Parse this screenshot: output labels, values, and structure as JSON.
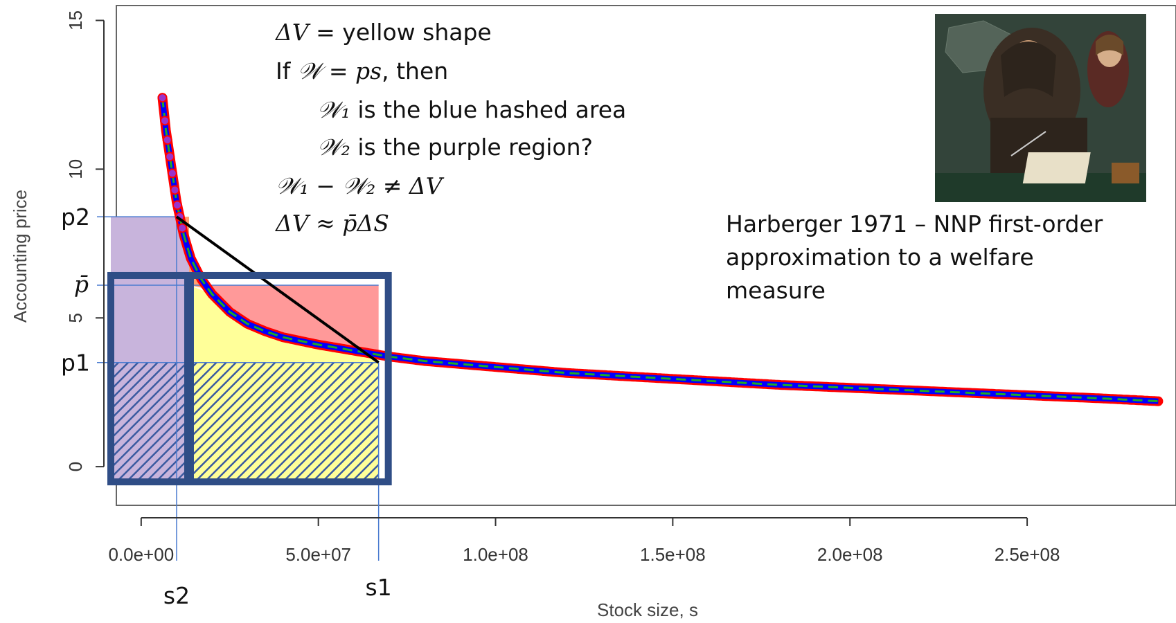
{
  "chart_data": {
    "type": "line",
    "title": "",
    "xlabel": "Stock size, s",
    "ylabel": "Accounting price",
    "xlim": [
      -7000000,
      292000000
    ],
    "ylim": [
      -1.3,
      15.5
    ],
    "x_ticks": [
      {
        "value": 0,
        "label": "0.0e+00"
      },
      {
        "value": 50000000,
        "label": "5.0e+07"
      },
      {
        "value": 100000000,
        "label": "1.0e+08"
      },
      {
        "value": 150000000,
        "label": "1.5e+08"
      },
      {
        "value": 200000000,
        "label": "2.0e+08"
      },
      {
        "value": 250000000,
        "label": "2.5e+08"
      }
    ],
    "y_ticks": [
      {
        "value": 0,
        "label": "0"
      },
      {
        "value": 5,
        "label": "5"
      },
      {
        "value": 10,
        "label": "10"
      },
      {
        "value": 15,
        "label": "15"
      }
    ],
    "curve": {
      "x": [
        6000000,
        7000000,
        8000000,
        9000000,
        10000000,
        12000000,
        14000000,
        17000000,
        20000000,
        25000000,
        30000000,
        35000000,
        40000000,
        50000000,
        60000000,
        70000000,
        80000000,
        100000000,
        120000000,
        150000000,
        180000000,
        210000000,
        240000000,
        270000000,
        287000000
      ],
      "y": [
        12.4,
        11.3,
        10.5,
        9.7,
        8.9,
        7.8,
        7.0,
        6.3,
        5.8,
        5.2,
        4.8,
        4.55,
        4.35,
        4.1,
        3.9,
        3.7,
        3.55,
        3.35,
        3.15,
        2.95,
        2.75,
        2.6,
        2.45,
        2.3,
        2.2
      ],
      "colors": [
        "#ff0000",
        "#0000ff",
        "#22aa22"
      ]
    },
    "reference_points": {
      "s1": 67000000,
      "s2": 10000000,
      "p1": 3.5,
      "p2": 8.4,
      "pbar": 6.1
    },
    "marker_labels": {
      "s1": "s1",
      "s2": "s2",
      "p1": "p1",
      "p2": "p2",
      "pbar": "p̄"
    },
    "regions": {
      "yellow": "#ffff99",
      "red": "#ff9999",
      "orange": "#ffa070",
      "purple": "#c8b4dc",
      "hatch": "#3a5aa0",
      "frame": "#2f4d86"
    }
  },
  "annotations": {
    "line1_math": "ΔV",
    "line1_text": " = yellow shape",
    "line2_a": "If ",
    "line2_math": "𝒲 = ps",
    "line2_b": ", then",
    "line3_math": "𝒲₁",
    "line3_text": " is the blue hashed area",
    "line4_math": "𝒲₂",
    "line4_text": " is the purple region?",
    "line5_math": "𝒲₁ − 𝒲₂ ≠ ΔV",
    "line6_math": "ΔV ≈ p̄ΔS"
  },
  "caption": {
    "line1": "Harberger 1971 – NNP first-order",
    "line2": "approximation to a welfare",
    "line3": "measure"
  },
  "painting": {
    "icon": "portrait-painting-icon"
  }
}
